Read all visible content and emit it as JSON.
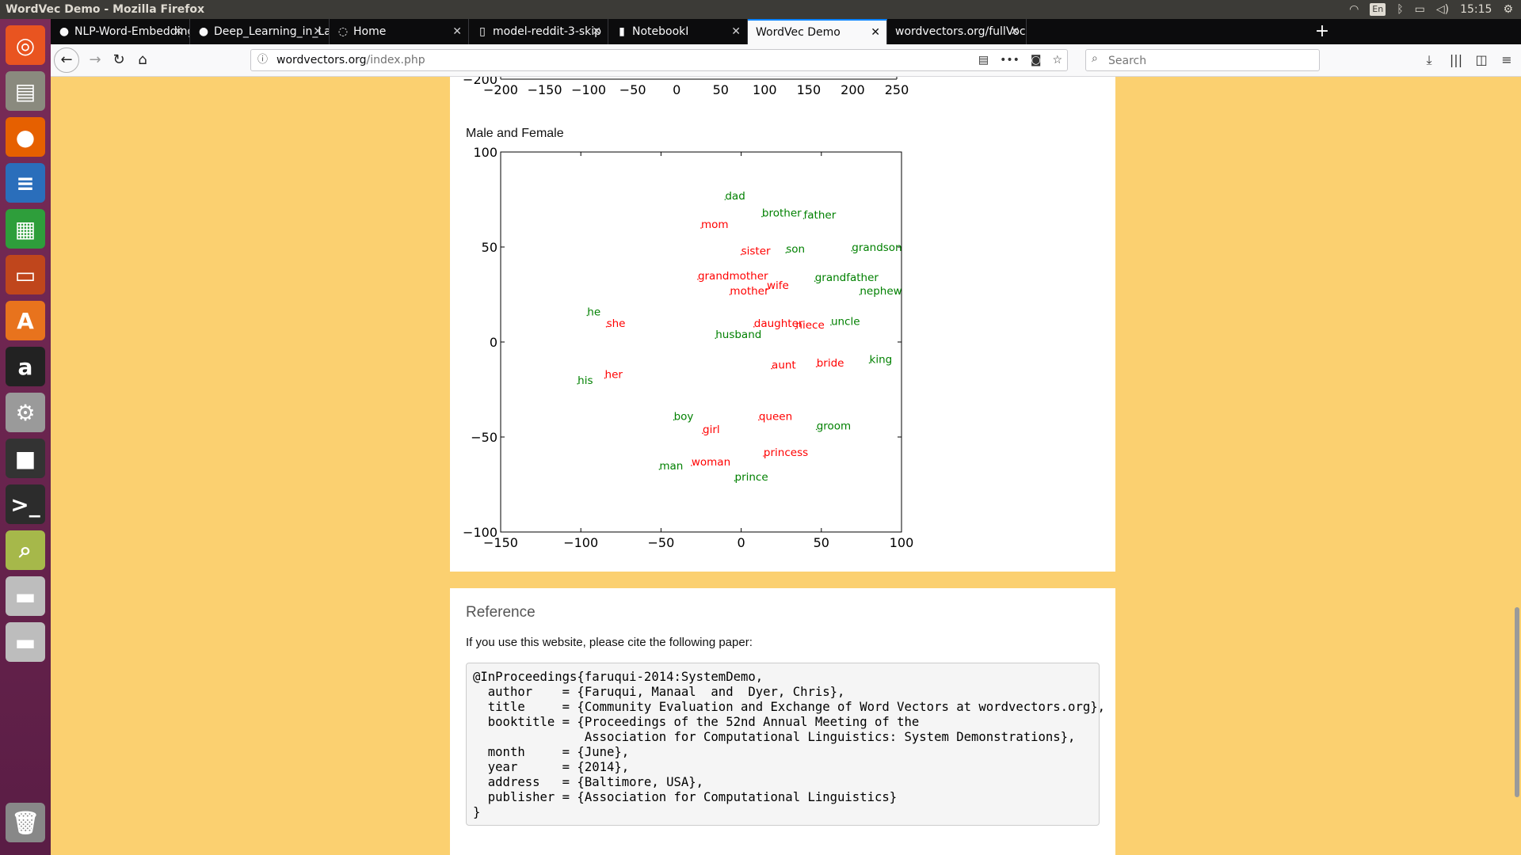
{
  "os": {
    "window_title": "WordVec Demo - Mozilla Firefox",
    "kbd_layout": "En",
    "clock": "15:15"
  },
  "launcher": {
    "items": [
      {
        "name": "ubuntu-dash-icon",
        "glyph": "◎",
        "color": "#e95420"
      },
      {
        "name": "files-icon",
        "glyph": "▤",
        "color": "#8a8a7e"
      },
      {
        "name": "firefox-icon",
        "glyph": "●",
        "color": "#e66000"
      },
      {
        "name": "writer-icon",
        "glyph": "≡",
        "color": "#2a6ebb"
      },
      {
        "name": "calc-icon",
        "glyph": "▦",
        "color": "#2e9e3b"
      },
      {
        "name": "impress-icon",
        "glyph": "▭",
        "color": "#c0461c"
      },
      {
        "name": "software-center-icon",
        "glyph": "A",
        "color": "#e8731d"
      },
      {
        "name": "amazon-icon",
        "glyph": "a",
        "color": "#222222"
      },
      {
        "name": "system-settings-icon",
        "glyph": "⚙",
        "color": "#9a9a9a"
      },
      {
        "name": "screen-lock-icon",
        "glyph": "■",
        "color": "#333333"
      },
      {
        "name": "terminal-icon",
        "glyph": ">_",
        "color": "#2c2c2c"
      },
      {
        "name": "image-viewer-icon",
        "glyph": "⌕",
        "color": "#a6b84a"
      },
      {
        "name": "drive-icon",
        "glyph": "▬",
        "color": "#bdbdbd"
      },
      {
        "name": "drive-2-icon",
        "glyph": "▬",
        "color": "#bdbdbd"
      },
      {
        "name": "trash-icon",
        "glyph": "🗑",
        "color": "#888888"
      }
    ]
  },
  "browser": {
    "tabs": [
      {
        "label": "NLP-Word-Embeddings",
        "icon": "github-icon",
        "glyph": "●",
        "active": false
      },
      {
        "label": "Deep_Learning_in_Lang",
        "icon": "github-icon",
        "glyph": "●",
        "active": false
      },
      {
        "label": "Home",
        "icon": "jupyter-icon",
        "glyph": "◌",
        "active": false
      },
      {
        "label": "model-reddit-3-skip",
        "icon": "file-icon",
        "glyph": "▯",
        "active": false
      },
      {
        "label": "NotebookI",
        "icon": "notebook-icon",
        "glyph": "▮",
        "active": false
      },
      {
        "label": "WordVec Demo",
        "icon": "",
        "glyph": "",
        "active": true
      },
      {
        "label": "wordvectors.org/fullVocab",
        "icon": "",
        "glyph": "",
        "active": false
      }
    ],
    "url_host": "wordvectors.org",
    "url_path": "/index.php",
    "search_placeholder": "Search"
  },
  "page": {
    "plot2_title": "Male and Female",
    "reference_heading": "Reference",
    "reference_intro": "If you use this website, please cite the following paper:",
    "bibtex": [
      "@InProceedings{faruqui-2014:SystemDemo,",
      "  author    = {Faruqui, Manaal  and  Dyer, Chris},",
      "  title     = {Community Evaluation and Exchange of Word Vectors at wordvectors.org},",
      "  booktitle = {Proceedings of the 52nd Annual Meeting of the",
      "               Association for Computational Linguistics: System Demonstrations},",
      "  month     = {June},",
      "  year      = {2014},",
      "  address   = {Baltimore, USA},",
      "  publisher = {Association for Computational Linguistics}",
      "}"
    ]
  },
  "chart_data": [
    {
      "type": "scatter",
      "title": "",
      "partial": true,
      "xlim": [
        -200,
        250
      ],
      "xticks": [
        -200,
        -150,
        -100,
        -50,
        0,
        50,
        100,
        150,
        200,
        250
      ],
      "yticks_visible": [
        -200
      ]
    },
    {
      "type": "scatter",
      "title": "Male and Female",
      "xlim": [
        -150,
        100
      ],
      "ylim": [
        -100,
        100
      ],
      "xticks": [
        -150,
        -100,
        -50,
        0,
        50,
        100
      ],
      "yticks": [
        100,
        50,
        0,
        -50,
        -100
      ],
      "colors": {
        "male": "#008000",
        "female": "#ff0000"
      },
      "points": [
        {
          "word": "dad",
          "x": -10,
          "y": 75,
          "group": "male"
        },
        {
          "word": "brother",
          "x": 13,
          "y": 66,
          "group": "male"
        },
        {
          "word": "father",
          "x": 39,
          "y": 65,
          "group": "male"
        },
        {
          "word": "mom",
          "x": -25,
          "y": 60,
          "group": "female"
        },
        {
          "word": "sister",
          "x": 0,
          "y": 46,
          "group": "female"
        },
        {
          "word": "son",
          "x": 28,
          "y": 47,
          "group": "male"
        },
        {
          "word": "grandson",
          "x": 69,
          "y": 48,
          "group": "male"
        },
        {
          "word": "grandmother",
          "x": -27,
          "y": 33,
          "group": "female"
        },
        {
          "word": "wife",
          "x": 16,
          "y": 28,
          "group": "female"
        },
        {
          "word": "grandfather",
          "x": 46,
          "y": 32,
          "group": "male"
        },
        {
          "word": "mother",
          "x": -7,
          "y": 25,
          "group": "female"
        },
        {
          "word": "nephew",
          "x": 74,
          "y": 25,
          "group": "male"
        },
        {
          "word": "he",
          "x": -96,
          "y": 14,
          "group": "male"
        },
        {
          "word": "she",
          "x": -84,
          "y": 8,
          "group": "female"
        },
        {
          "word": "daughter",
          "x": 8,
          "y": 8,
          "group": "female"
        },
        {
          "word": "niece",
          "x": 34,
          "y": 7,
          "group": "female"
        },
        {
          "word": "uncle",
          "x": 56,
          "y": 9,
          "group": "male"
        },
        {
          "word": "husband",
          "x": -16,
          "y": 2,
          "group": "male"
        },
        {
          "word": "aunt",
          "x": 19,
          "y": -14,
          "group": "female"
        },
        {
          "word": "bride",
          "x": 47,
          "y": -13,
          "group": "female"
        },
        {
          "word": "king",
          "x": 80,
          "y": -11,
          "group": "male"
        },
        {
          "word": "his",
          "x": -102,
          "y": -22,
          "group": "male"
        },
        {
          "word": "her",
          "x": -85,
          "y": -19,
          "group": "female"
        },
        {
          "word": "boy",
          "x": -42,
          "y": -41,
          "group": "male"
        },
        {
          "word": "queen",
          "x": 11,
          "y": -41,
          "group": "female"
        },
        {
          "word": "girl",
          "x": -24,
          "y": -48,
          "group": "female"
        },
        {
          "word": "groom",
          "x": 47,
          "y": -46,
          "group": "male"
        },
        {
          "word": "princess",
          "x": 14,
          "y": -60,
          "group": "female"
        },
        {
          "word": "man",
          "x": -51,
          "y": -67,
          "group": "male"
        },
        {
          "word": "woman",
          "x": -31,
          "y": -65,
          "group": "female"
        },
        {
          "word": "prince",
          "x": -4,
          "y": -73,
          "group": "male"
        }
      ]
    }
  ]
}
